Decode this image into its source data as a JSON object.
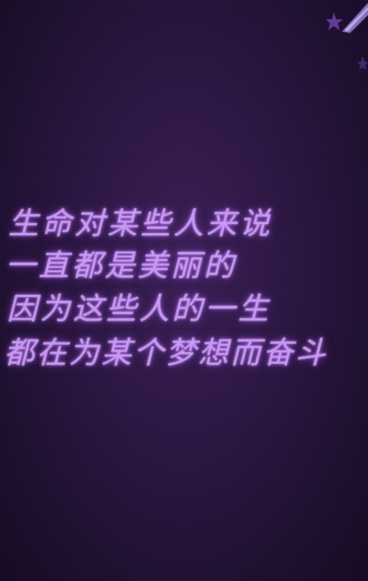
{
  "poem": {
    "lines": [
      "生命对某些人来说",
      "一直都是美丽的",
      "因为这些人的一生",
      "都在为某个梦想而奋斗"
    ]
  },
  "colors": {
    "background": "#2a1540",
    "text": "#c99bf0",
    "glow": "#a05af0",
    "decoration": "#8a5fd0"
  },
  "decoration": {
    "icon": "star-ribbon-icon"
  }
}
